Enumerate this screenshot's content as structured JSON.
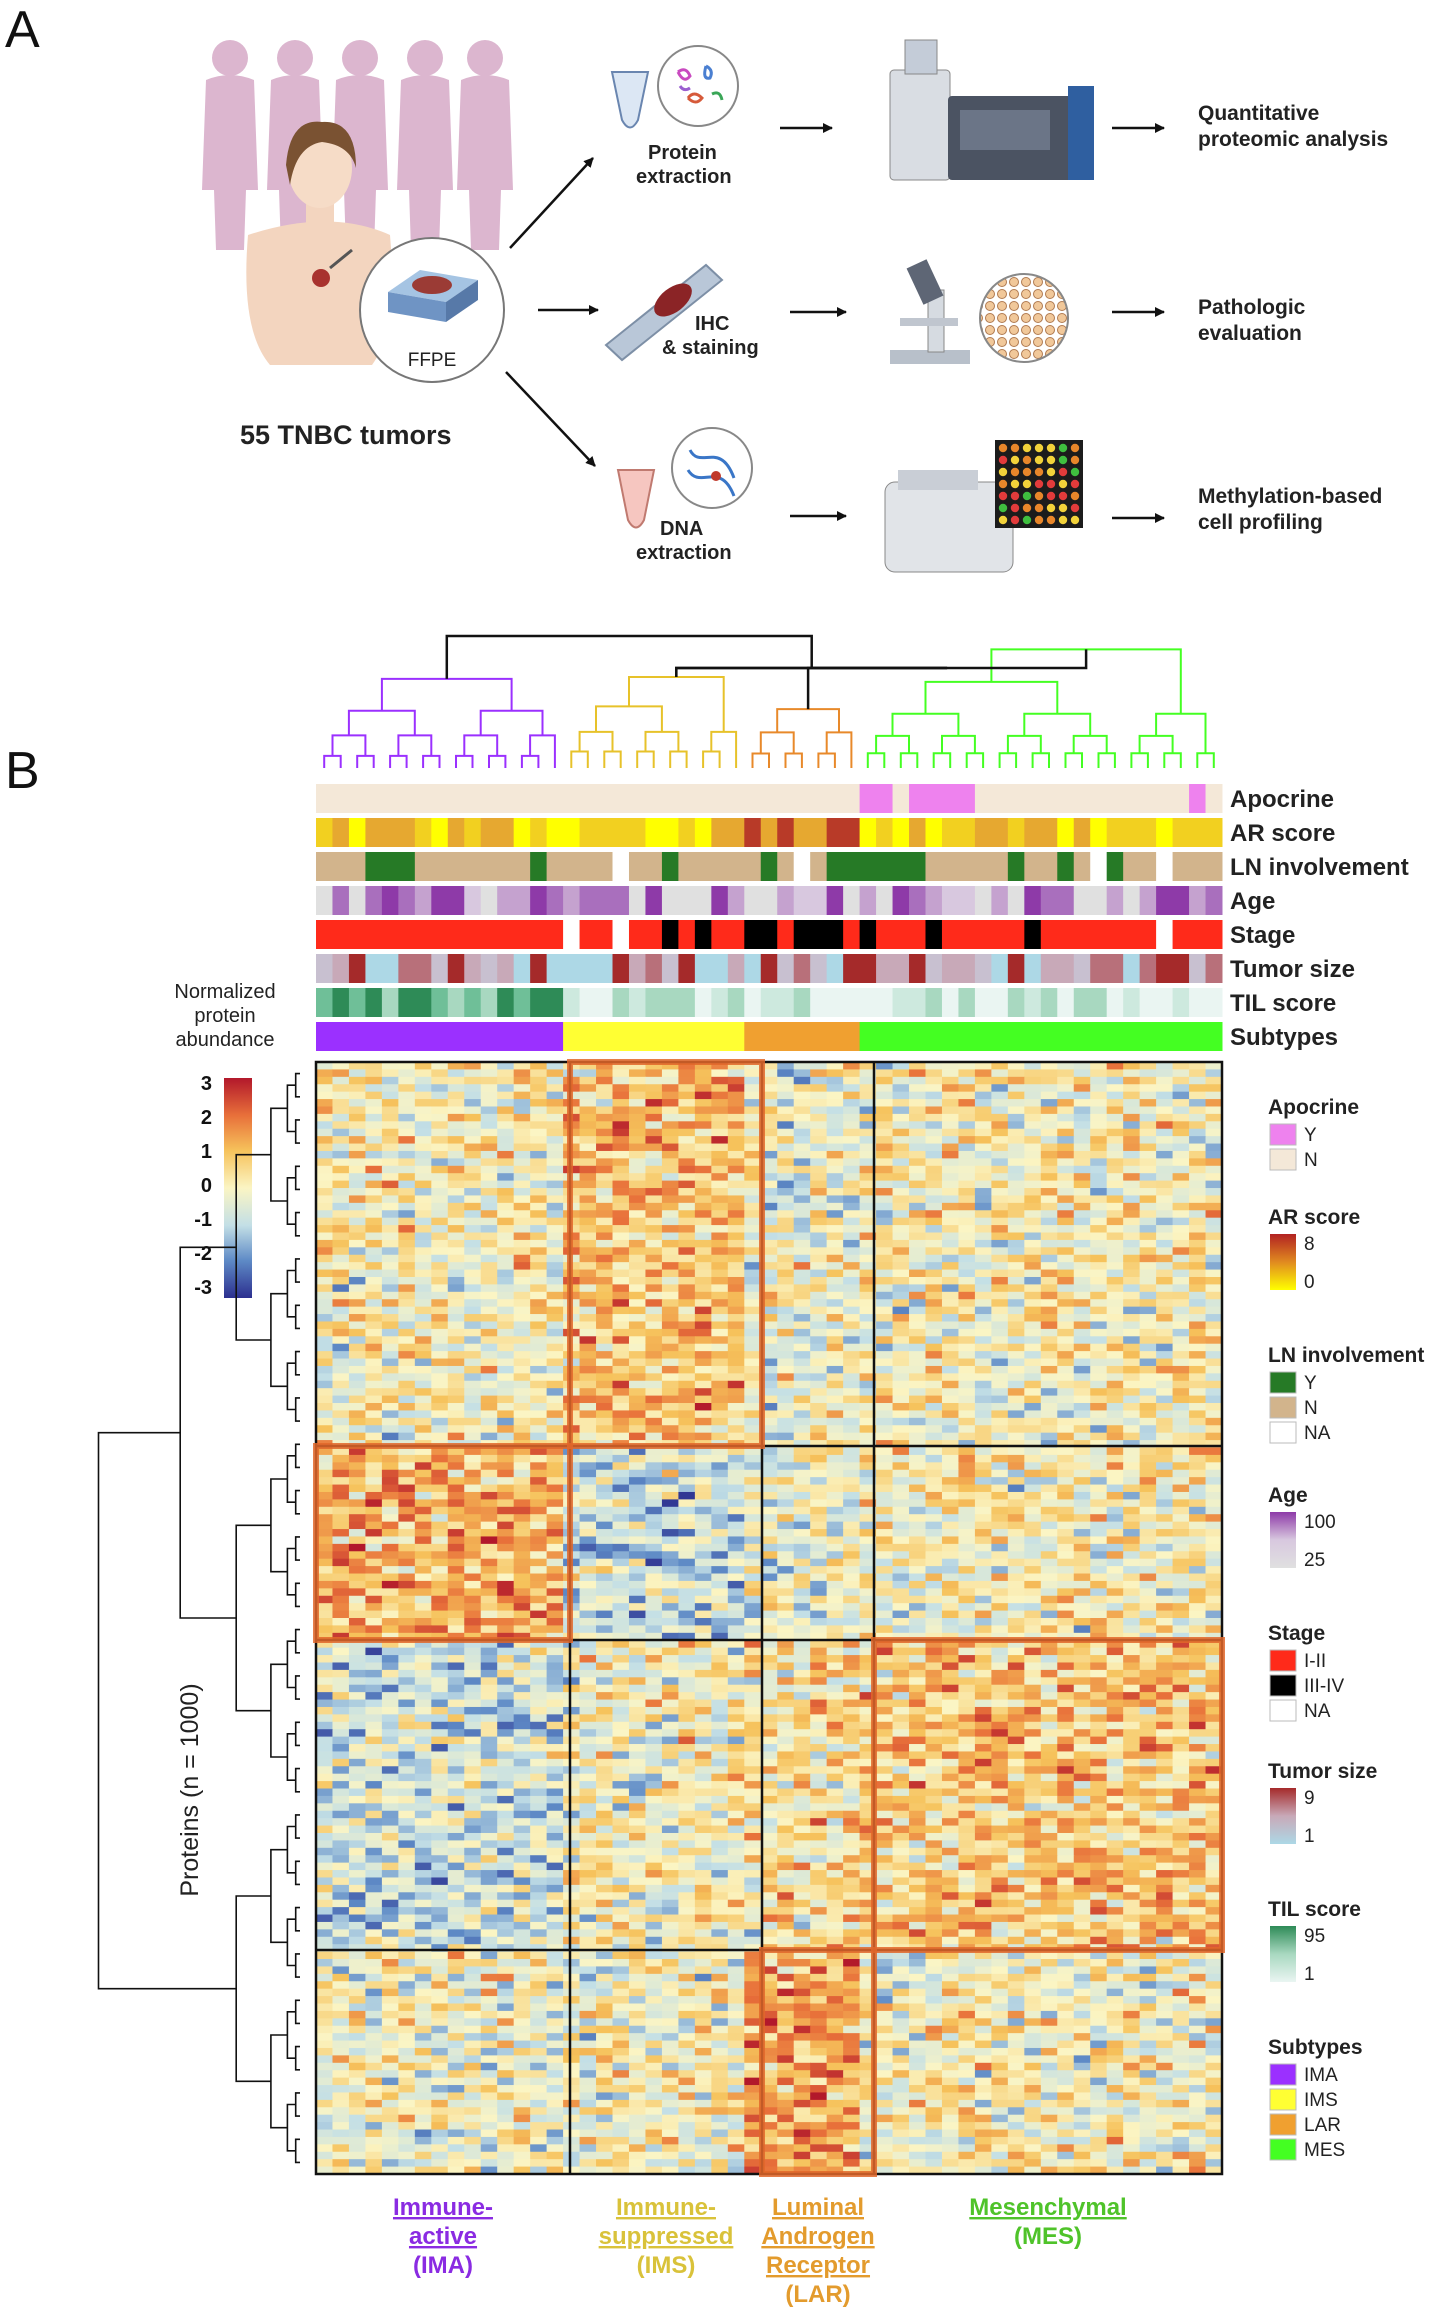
{
  "panels": {
    "a": "A",
    "b": "B"
  },
  "workflow": {
    "tumors_label": "55 TNBC tumors",
    "ffpe_label": "FFPE",
    "steps": [
      {
        "line1": "Protein",
        "line2": "extraction",
        "out1": "Quantitative",
        "out2": "proteomic analysis"
      },
      {
        "line1": "IHC",
        "line2": "& staining",
        "out1": "Pathologic",
        "out2": "evaluation"
      },
      {
        "line1": "DNA",
        "line2": "extraction",
        "out1": "Methylation-based",
        "out2": "cell profiling"
      }
    ]
  },
  "heatmap": {
    "scale_title": [
      "Normalized",
      "protein",
      "abundance"
    ],
    "scale_ticks": [
      "3",
      "2",
      "1",
      "0",
      "-1",
      "-2",
      "-3"
    ],
    "row_axis_label": "Proteins  (n = 1000)",
    "tracks": [
      "Apocrine",
      "AR score",
      "LN involvement",
      "Age",
      "Stage",
      "Tumor size",
      "TIL score",
      "Subtypes"
    ],
    "subtype_labels": [
      {
        "lines": [
          "Immune-",
          "active"
        ],
        "abbr": "(IMA)",
        "color": "#8a2be2"
      },
      {
        "lines": [
          "Immune-",
          "suppressed"
        ],
        "abbr": "(IMS)",
        "color": "#d9c23a"
      },
      {
        "lines": [
          "Luminal",
          "Androgen",
          "Receptor"
        ],
        "abbr": "(LAR)",
        "color": "#e39b2d"
      },
      {
        "lines": [
          "Mesenchymal"
        ],
        "abbr": "(MES)",
        "color": "#4fc32a"
      }
    ],
    "colors": {
      "ima": "#9b30ff",
      "ims": "#ffff33",
      "lar": "#f0a030",
      "mes": "#44ff22",
      "highlight": "#e2672a"
    }
  },
  "legend": [
    {
      "title": "Apocrine",
      "type": "cat",
      "items": [
        {
          "label": "Y",
          "color": "#ee82ee"
        },
        {
          "label": "N",
          "color": "#f4e8d8"
        }
      ]
    },
    {
      "title": "AR score",
      "type": "grad",
      "hi": "8",
      "lo": "0",
      "colors": [
        "#b22222",
        "#e08a20",
        "#ffff00"
      ]
    },
    {
      "title": "LN involvement",
      "type": "cat",
      "items": [
        {
          "label": "Y",
          "color": "#267a26"
        },
        {
          "label": "N",
          "color": "#d2b48c"
        },
        {
          "label": "NA",
          "color": "#ffffff"
        }
      ]
    },
    {
      "title": "Age",
      "type": "grad",
      "hi": "100",
      "lo": "25",
      "colors": [
        "#8e3aa8",
        "#d8c8df",
        "#e0e0e0"
      ]
    },
    {
      "title": "Stage",
      "type": "cat",
      "items": [
        {
          "label": "I-II",
          "color": "#ff2a1a"
        },
        {
          "label": "III-IV",
          "color": "#000000"
        },
        {
          "label": "NA",
          "color": "#ffffff"
        }
      ]
    },
    {
      "title": "Tumor size",
      "type": "grad",
      "hi": "9",
      "lo": "1",
      "colors": [
        "#a52a2a",
        "#c8a9b8",
        "#add8e6"
      ]
    },
    {
      "title": "TIL score",
      "type": "grad",
      "hi": "95",
      "lo": "1",
      "colors": [
        "#2e8b57",
        "#a8d8c0",
        "#eaf5f2"
      ]
    },
    {
      "title": "Subtypes",
      "type": "cat",
      "items": [
        {
          "label": "IMA",
          "color": "#9b30ff"
        },
        {
          "label": "IMS",
          "color": "#ffff33"
        },
        {
          "label": "LAR",
          "color": "#f0a030"
        },
        {
          "label": "MES",
          "color": "#44ff22"
        }
      ]
    }
  ]
}
